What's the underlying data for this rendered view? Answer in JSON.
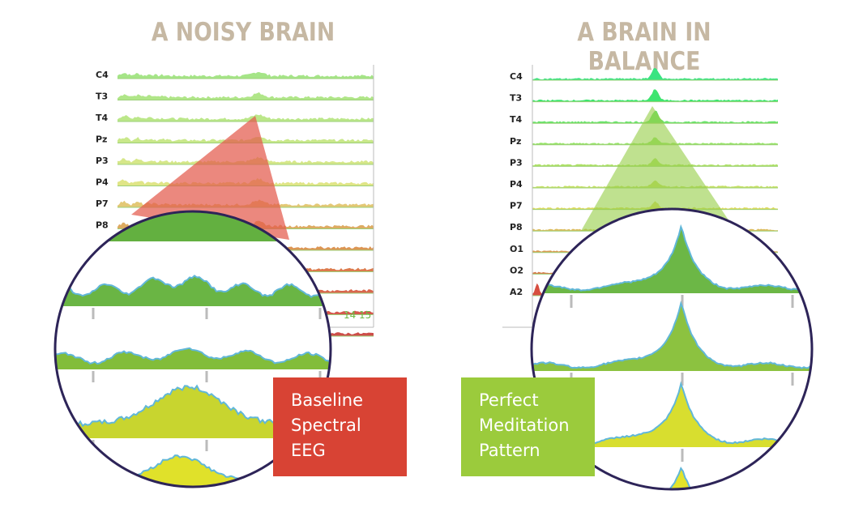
{
  "titles": {
    "left": "A NOISY BRAIN",
    "right": "A BRAIN IN BALANCE"
  },
  "captions": {
    "left": [
      "Baseline",
      "Spectral",
      "EEG"
    ],
    "right": [
      "Perfect",
      "Meditation",
      "Pattern"
    ]
  },
  "chart_data": [
    {
      "type": "area",
      "title": "A NOISY BRAIN",
      "channels": [
        "C4",
        "T3",
        "T4",
        "Pz",
        "P3",
        "P4",
        "P7",
        "P8",
        "",
        "",
        "",
        "",
        ""
      ],
      "x_tick_labels": [
        "14",
        "15"
      ],
      "pattern": "noisy broadband spectra with no single dominant peak",
      "colors": [
        "#9be27a",
        "#a7e37b",
        "#b4e47c",
        "#c3e57d",
        "#d2e47c",
        "#dde27a",
        "#e0c266",
        "#d9a251",
        "#d88a40",
        "#d86b38",
        "#d5553a",
        "#d0463a",
        "#c83a35"
      ]
    },
    {
      "type": "area",
      "title": "A BRAIN IN BALANCE",
      "channels": [
        "C4",
        "T3",
        "T4",
        "Pz",
        "P3",
        "P4",
        "P7",
        "P8",
        "O1",
        "O2",
        "A2"
      ],
      "pattern": "clean spectra with a single sharp peak",
      "colors": [
        "#2fe37a",
        "#33e467",
        "#5de25f",
        "#8fe15e",
        "#a9df5c",
        "#c2de5a",
        "#d7d857",
        "#d9b752",
        "#d89749",
        "#d5713f",
        "#d54536"
      ]
    }
  ],
  "accent_colors": {
    "frame": "#2d2458",
    "red": "#d84334",
    "green": "#9bcb3c",
    "title": "#c6b8a3",
    "line": "#61b7d8"
  }
}
